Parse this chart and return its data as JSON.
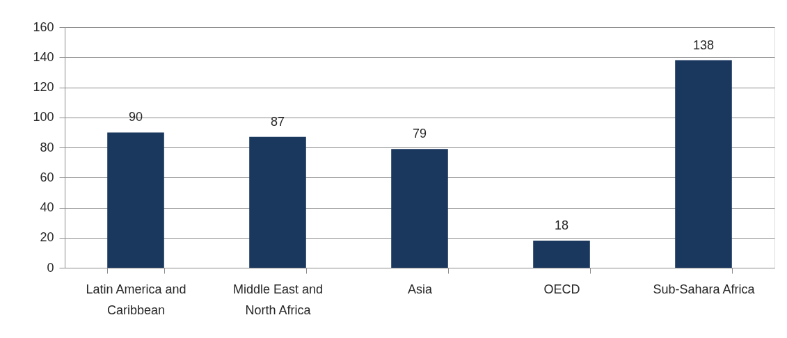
{
  "chart_data": {
    "type": "bar",
    "categories": [
      "Latin America and Caribbean",
      "Middle East and North Africa",
      "Asia",
      "OECD",
      "Sub-Sahara Africa"
    ],
    "values": [
      90,
      87,
      79,
      18,
      138
    ],
    "color": "#1a375e",
    "ylim": [
      0,
      160
    ],
    "yticks": [
      0,
      20,
      40,
      60,
      80,
      100,
      120,
      140,
      160
    ],
    "grid": "y",
    "data_labels": true
  }
}
